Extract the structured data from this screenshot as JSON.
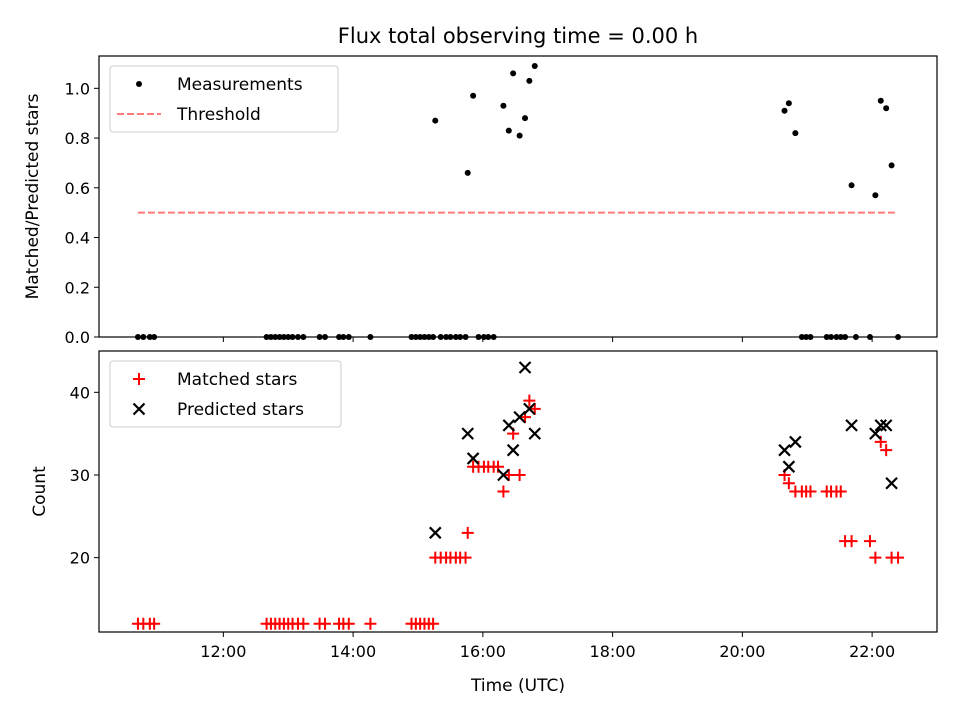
{
  "chart_data": {
    "title": "Flux total observing time = 0.00 h",
    "xlabel": "Time (UTC)",
    "x_ticks": [
      "12:00",
      "14:00",
      "16:00",
      "18:00",
      "20:00",
      "22:00"
    ],
    "panels": [
      {
        "type": "scatter",
        "ylabel": "Matched/Predicted stars",
        "xlim": [
          "10:05",
          "23:00"
        ],
        "ylim": [
          0,
          1.13
        ],
        "y_ticks": [
          "0.0",
          "0.2",
          "0.4",
          "0.6",
          "0.8",
          "1.0"
        ],
        "legend_position": "top-left",
        "series": [
          {
            "name": "Measurements",
            "marker": "dot",
            "color": "#000000",
            "points": [
              [
                "10:41",
                0
              ],
              [
                "10:46",
                0
              ],
              [
                "10:52",
                0
              ],
              [
                "10:56",
                0
              ],
              [
                "12:40",
                0
              ],
              [
                "12:44",
                0
              ],
              [
                "12:48",
                0
              ],
              [
                "12:52",
                0
              ],
              [
                "12:56",
                0
              ],
              [
                "13:00",
                0
              ],
              [
                "13:04",
                0
              ],
              [
                "13:09",
                0
              ],
              [
                "13:14",
                0
              ],
              [
                "13:29",
                0
              ],
              [
                "13:34",
                0
              ],
              [
                "13:47",
                0
              ],
              [
                "13:51",
                0
              ],
              [
                "13:56",
                0
              ],
              [
                "14:16",
                0
              ],
              [
                "14:54",
                0
              ],
              [
                "14:58",
                0
              ],
              [
                "15:02",
                0
              ],
              [
                "15:06",
                0
              ],
              [
                "15:10",
                0
              ],
              [
                "15:14",
                0
              ],
              [
                "15:16",
                0.87
              ],
              [
                "15:21",
                0
              ],
              [
                "15:26",
                0
              ],
              [
                "15:30",
                0
              ],
              [
                "15:35",
                0
              ],
              [
                "15:39",
                0
              ],
              [
                "15:44",
                0
              ],
              [
                "15:46",
                0.66
              ],
              [
                "15:51",
                0.97
              ],
              [
                "15:56",
                0
              ],
              [
                "16:01",
                0
              ],
              [
                "16:05",
                0
              ],
              [
                "16:10",
                0
              ],
              [
                "16:19",
                0.93
              ],
              [
                "16:24",
                0.83
              ],
              [
                "16:28",
                1.06
              ],
              [
                "16:34",
                0.81
              ],
              [
                "16:39",
                0.88
              ],
              [
                "16:43",
                1.03
              ],
              [
                "16:48",
                1.09
              ],
              [
                "20:39",
                0.91
              ],
              [
                "20:43",
                0.94
              ],
              [
                "20:49",
                0.82
              ],
              [
                "20:55",
                0
              ],
              [
                "20:59",
                0
              ],
              [
                "21:03",
                0
              ],
              [
                "21:18",
                0
              ],
              [
                "21:22",
                0
              ],
              [
                "21:27",
                0
              ],
              [
                "21:31",
                0
              ],
              [
                "21:35",
                0
              ],
              [
                "21:41",
                0.61
              ],
              [
                "21:45",
                0
              ],
              [
                "21:58",
                0
              ],
              [
                "22:03",
                0.57
              ],
              [
                "22:08",
                0.95
              ],
              [
                "22:13",
                0.92
              ],
              [
                "22:18",
                0.69
              ],
              [
                "22:24",
                0
              ]
            ]
          },
          {
            "name": "Threshold",
            "marker": "dashed-line",
            "color": "#ff7b7b",
            "points": [
              [
                "10:41",
                0.5
              ],
              [
                "22:24",
                0.5
              ]
            ]
          }
        ]
      },
      {
        "type": "scatter",
        "ylabel": "Count",
        "xlim": [
          "10:05",
          "23:00"
        ],
        "ylim": [
          11,
          45
        ],
        "y_ticks": [
          "20",
          "30",
          "40"
        ],
        "legend_position": "top-left",
        "series": [
          {
            "name": "Matched stars",
            "marker": "plus",
            "color": "#ff0000",
            "points": [
              [
                "10:41",
                12
              ],
              [
                "10:46",
                12
              ],
              [
                "10:52",
                12
              ],
              [
                "10:56",
                12
              ],
              [
                "12:40",
                12
              ],
              [
                "12:44",
                12
              ],
              [
                "12:48",
                12
              ],
              [
                "12:52",
                12
              ],
              [
                "12:56",
                12
              ],
              [
                "13:00",
                12
              ],
              [
                "13:04",
                12
              ],
              [
                "13:09",
                12
              ],
              [
                "13:14",
                12
              ],
              [
                "13:29",
                12
              ],
              [
                "13:34",
                12
              ],
              [
                "13:47",
                12
              ],
              [
                "13:51",
                12
              ],
              [
                "13:56",
                12
              ],
              [
                "14:16",
                12
              ],
              [
                "14:54",
                12
              ],
              [
                "14:58",
                12
              ],
              [
                "15:02",
                12
              ],
              [
                "15:06",
                12
              ],
              [
                "15:10",
                12
              ],
              [
                "15:14",
                12
              ],
              [
                "15:16",
                20
              ],
              [
                "15:21",
                20
              ],
              [
                "15:26",
                20
              ],
              [
                "15:30",
                20
              ],
              [
                "15:35",
                20
              ],
              [
                "15:39",
                20
              ],
              [
                "15:44",
                20
              ],
              [
                "15:46",
                23
              ],
              [
                "15:51",
                31
              ],
              [
                "15:56",
                31
              ],
              [
                "16:01",
                31
              ],
              [
                "16:05",
                31
              ],
              [
                "16:10",
                31
              ],
              [
                "16:14",
                31
              ],
              [
                "16:19",
                28
              ],
              [
                "16:24",
                30
              ],
              [
                "16:28",
                35
              ],
              [
                "16:34",
                30
              ],
              [
                "16:39",
                37
              ],
              [
                "16:43",
                39
              ],
              [
                "16:48",
                38
              ],
              [
                "20:39",
                30
              ],
              [
                "20:43",
                29
              ],
              [
                "20:49",
                28
              ],
              [
                "20:55",
                28
              ],
              [
                "20:59",
                28
              ],
              [
                "21:03",
                28
              ],
              [
                "21:18",
                28
              ],
              [
                "21:22",
                28
              ],
              [
                "21:27",
                28
              ],
              [
                "21:31",
                28
              ],
              [
                "21:35",
                22
              ],
              [
                "21:41",
                22
              ],
              [
                "21:58",
                22
              ],
              [
                "22:03",
                20
              ],
              [
                "22:08",
                34
              ],
              [
                "22:13",
                33
              ],
              [
                "22:18",
                20
              ],
              [
                "22:24",
                20
              ]
            ]
          },
          {
            "name": "Predicted stars",
            "marker": "x",
            "color": "#000000",
            "points": [
              [
                "15:16",
                23
              ],
              [
                "15:46",
                35
              ],
              [
                "15:51",
                32
              ],
              [
                "16:19",
                30
              ],
              [
                "16:24",
                36
              ],
              [
                "16:28",
                33
              ],
              [
                "16:34",
                37
              ],
              [
                "16:39",
                43
              ],
              [
                "16:43",
                38
              ],
              [
                "16:48",
                35
              ],
              [
                "20:39",
                33
              ],
              [
                "20:43",
                31
              ],
              [
                "20:49",
                34
              ],
              [
                "21:41",
                36
              ],
              [
                "22:03",
                35
              ],
              [
                "22:08",
                36
              ],
              [
                "22:13",
                36
              ],
              [
                "22:18",
                29
              ]
            ]
          }
        ]
      }
    ]
  }
}
